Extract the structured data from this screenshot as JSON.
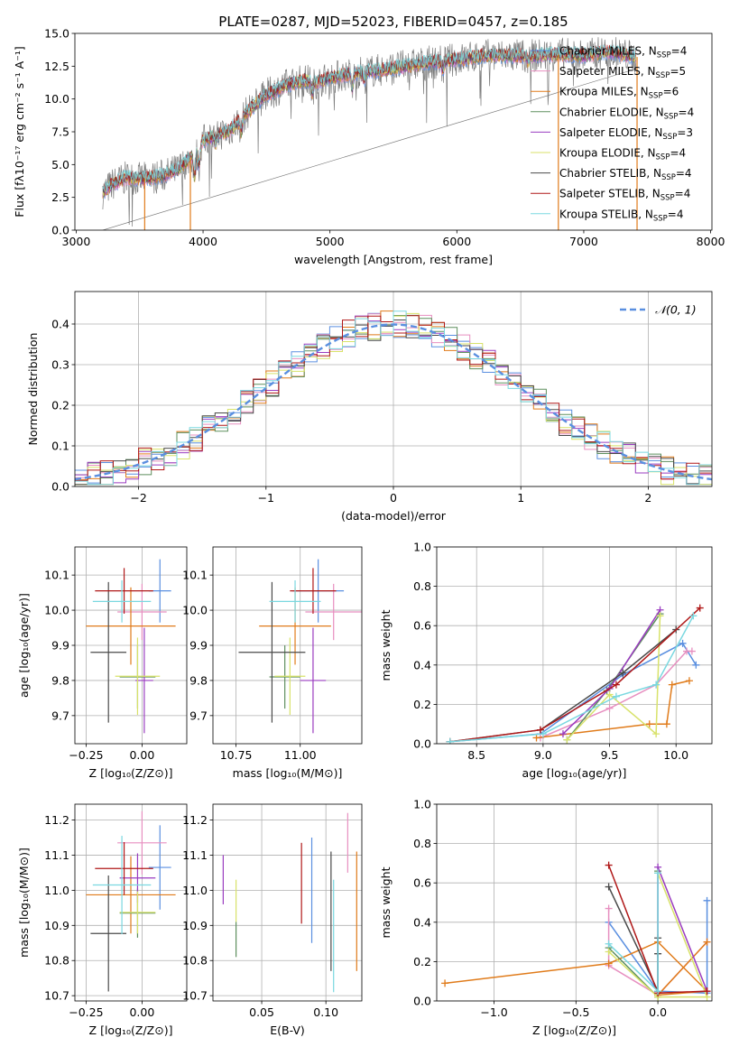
{
  "figure_title": "PLATE=0287, MJD=52023, FIBERID=0457, z=0.185",
  "colors": {
    "Chabrier MILES": "#5a8fe0",
    "Salpeter MILES": "#e78fc0",
    "Kroupa MILES": "#e07b1a",
    "Chabrier ELODIE": "#5e8f5e",
    "Salpeter ELODIE": "#9a3cc0",
    "Kroupa ELODIE": "#d8e26a",
    "Chabrier STELIB": "#4a4a4a",
    "Salpeter STELIB": "#b01818",
    "Kroupa STELIB": "#7ad8e0",
    "spectrum": "#7d7d7d",
    "gaussian": "#5a8fe0"
  },
  "chart_data": [
    {
      "id": "spectrum",
      "type": "line",
      "title": "PLATE=0287, MJD=52023, FIBERID=0457, z=0.185",
      "xlabel": "wavelength [Angstrom, rest frame]",
      "ylabel": "Flux [fλ10⁻¹⁷ erg cm⁻² s⁻¹ A⁻¹]",
      "xlim": [
        2990,
        8010
      ],
      "ylim": [
        0,
        15
      ],
      "xticks": [
        3000,
        4000,
        5000,
        6000,
        7000,
        8000
      ],
      "yticks": [
        0.0,
        2.5,
        5.0,
        7.5,
        10.0,
        12.5,
        15.0
      ],
      "legend_position": "right",
      "legend": [
        {
          "label": "Chabrier MILES, N_SSP=4",
          "color_key": "Chabrier MILES"
        },
        {
          "label": "Salpeter MILES, N_SSP=5",
          "color_key": "Salpeter MILES"
        },
        {
          "label": "Kroupa MILES, N_SSP=6",
          "color_key": "Kroupa MILES"
        },
        {
          "label": "Chabrier ELODIE, N_SSP=4",
          "color_key": "Chabrier ELODIE"
        },
        {
          "label": "Salpeter ELODIE, N_SSP=3",
          "color_key": "Salpeter ELODIE"
        },
        {
          "label": "Kroupa ELODIE, N_SSP=4",
          "color_key": "Kroupa ELODIE"
        },
        {
          "label": "Chabrier STELIB, N_SSP=4",
          "color_key": "Chabrier STELIB"
        },
        {
          "label": "Salpeter STELIB, N_SSP=4",
          "color_key": "Salpeter STELIB"
        },
        {
          "label": "Kroupa STELIB, N_SSP=4",
          "color_key": "Kroupa STELIB"
        }
      ],
      "continuum": {
        "x": [
          3200,
          3300,
          3400,
          3500,
          3600,
          3700,
          3800,
          3900,
          4000,
          4100,
          4200,
          4300,
          4400,
          4500,
          4600,
          4700,
          4800,
          4900,
          5000,
          5200,
          5400,
          5600,
          5800,
          6000,
          6200,
          6400,
          6600,
          6800,
          7000,
          7200,
          7400
        ],
        "y": [
          2.8,
          3.6,
          4.0,
          3.9,
          4.0,
          4.2,
          4.6,
          5.5,
          6.8,
          7.3,
          7.5,
          8.5,
          9.5,
          10.3,
          10.8,
          11.2,
          11.4,
          11.3,
          11.6,
          12.0,
          12.2,
          12.5,
          12.8,
          13.0,
          13.3,
          13.3,
          13.3,
          13.4,
          13.3,
          13.6,
          13.2
        ]
      },
      "model_cutoffs": [
        3540,
        3900,
        6800,
        7420
      ]
    },
    {
      "id": "residuals",
      "type": "step",
      "xlabel": "(data-model)/error",
      "ylabel": "Normed distribution",
      "xlim": [
        -2.5,
        2.5
      ],
      "ylim": [
        0,
        0.48
      ],
      "xticks": [
        -2,
        -1,
        0,
        1,
        2
      ],
      "yticks": [
        0.0,
        0.1,
        0.2,
        0.3,
        0.4
      ],
      "grid": true,
      "legend_position": "top-right",
      "legend": [
        {
          "label": "𝒩(0, 1)",
          "color_key": "gaussian"
        }
      ],
      "bin_width": 0.1,
      "bins_from": -2.5
    },
    {
      "id": "age_vs_Z",
      "type": "errorbar",
      "xlabel": "Z [log₁₀(Z/Z⊙)]",
      "ylabel": "age  [log₁₀(age/yr)]",
      "xlim": [
        -0.3,
        0.2
      ],
      "ylim": [
        9.62,
        10.18
      ],
      "xticks": [
        -0.25,
        0.0
      ],
      "xticklabels": [
        "−0.25",
        "0.00"
      ],
      "yticks": [
        9.7,
        9.8,
        9.9,
        10.0,
        10.1
      ],
      "grid": true,
      "points": [
        {
          "model": "Chabrier MILES",
          "x": 0.08,
          "xerr": 0.05,
          "y": 10.055,
          "yerr": 0.09
        },
        {
          "model": "Salpeter MILES",
          "x": 0.0,
          "xerr": 0.11,
          "y": 9.995,
          "yerr": 0.08
        },
        {
          "model": "Kroupa MILES",
          "x": -0.05,
          "xerr": 0.2,
          "y": 9.955,
          "yerr": 0.11
        },
        {
          "model": "Chabrier ELODIE",
          "x": -0.02,
          "xerr": 0.08,
          "y": 9.81,
          "yerr": 0.09
        },
        {
          "model": "Salpeter ELODIE",
          "x": 0.01,
          "xerr": 0.04,
          "y": 9.8,
          "yerr": 0.15
        },
        {
          "model": "Kroupa ELODIE",
          "x": -0.02,
          "xerr": 0.1,
          "y": 9.812,
          "yerr": 0.11
        },
        {
          "model": "Chabrier STELIB",
          "x": -0.15,
          "xerr": 0.08,
          "y": 9.88,
          "yerr": 0.2
        },
        {
          "model": "Salpeter STELIB",
          "x": -0.08,
          "xerr": 0.13,
          "y": 10.055,
          "yerr": 0.065
        },
        {
          "model": "Kroupa STELIB",
          "x": -0.09,
          "xerr": 0.13,
          "y": 10.025,
          "yerr": 0.06
        }
      ]
    },
    {
      "id": "age_vs_mass",
      "type": "errorbar",
      "xlabel": "mass [log₁₀(M/M⊙)]",
      "ylabel": "",
      "xlim": [
        10.66,
        11.24
      ],
      "ylim": [
        9.62,
        10.18
      ],
      "xticks": [
        10.75,
        11.0
      ],
      "xticklabels": [
        "10.75",
        "11.00"
      ],
      "yticks": [
        9.7,
        9.8,
        9.9,
        10.0,
        10.1
      ],
      "grid": true,
      "points": [
        {
          "model": "Chabrier MILES",
          "x": 11.07,
          "xerr": 0.1,
          "y": 10.055,
          "yerr": 0.09
        },
        {
          "model": "Salpeter MILES",
          "x": 11.13,
          "xerr": 0.11,
          "y": 9.995,
          "yerr": 0.08
        },
        {
          "model": "Kroupa MILES",
          "x": 10.98,
          "xerr": 0.14,
          "y": 9.955,
          "yerr": 0.11
        },
        {
          "model": "Chabrier ELODIE",
          "x": 10.94,
          "xerr": 0.06,
          "y": 9.81,
          "yerr": 0.09
        },
        {
          "model": "Salpeter ELODIE",
          "x": 11.05,
          "xerr": 0.05,
          "y": 9.8,
          "yerr": 0.15
        },
        {
          "model": "Kroupa ELODIE",
          "x": 10.96,
          "xerr": 0.06,
          "y": 9.812,
          "yerr": 0.11
        },
        {
          "model": "Chabrier STELIB",
          "x": 10.89,
          "xerr": 0.13,
          "y": 9.88,
          "yerr": 0.2
        },
        {
          "model": "Salpeter STELIB",
          "x": 11.05,
          "xerr": 0.09,
          "y": 10.055,
          "yerr": 0.065
        },
        {
          "model": "Kroupa STELIB",
          "x": 10.98,
          "xerr": 0.1,
          "y": 10.025,
          "yerr": 0.06
        }
      ]
    },
    {
      "id": "weight_vs_age",
      "type": "line",
      "xlabel": "age  [log₁₀(age/yr)]",
      "ylabel": "mass weight",
      "xlim": [
        8.2,
        10.27
      ],
      "ylim": [
        0,
        1
      ],
      "xticks": [
        8.5,
        9.0,
        9.5,
        10.0
      ],
      "xticklabels": [
        "8.5",
        "9.0",
        "9.5",
        "10.0"
      ],
      "yticks": [
        0.0,
        0.2,
        0.4,
        0.6,
        0.8,
        1.0
      ],
      "grid": true,
      "marker": "+",
      "series": [
        {
          "model": "Chabrier MILES",
          "x": [
            8.3,
            8.98,
            9.6,
            10.05,
            10.15
          ],
          "y": [
            0.01,
            0.05,
            0.35,
            0.51,
            0.4
          ]
        },
        {
          "model": "Salpeter MILES",
          "x": [
            8.98,
            9.5,
            9.85,
            10.08,
            10.12
          ],
          "y": [
            0.03,
            0.18,
            0.3,
            0.47,
            0.47
          ]
        },
        {
          "model": "Kroupa MILES",
          "x": [
            8.95,
            9.8,
            9.93,
            9.97,
            10.1
          ],
          "y": [
            0.03,
            0.1,
            0.1,
            0.3,
            0.32
          ]
        },
        {
          "model": "Chabrier ELODIE",
          "x": [
            9.18,
            9.48,
            9.88
          ],
          "y": [
            0.02,
            0.27,
            0.66
          ]
        },
        {
          "model": "Salpeter ELODIE",
          "x": [
            9.15,
            9.5,
            9.88
          ],
          "y": [
            0.05,
            0.28,
            0.68
          ]
        },
        {
          "model": "Kroupa ELODIE",
          "x": [
            9.18,
            9.5,
            9.85,
            9.88
          ],
          "y": [
            0.02,
            0.25,
            0.05,
            0.65
          ]
        },
        {
          "model": "Chabrier STELIB",
          "x": [
            8.3,
            8.98,
            9.6,
            10.0
          ],
          "y": [
            0.01,
            0.07,
            0.36,
            0.58
          ]
        },
        {
          "model": "Salpeter STELIB",
          "x": [
            8.3,
            8.98,
            9.55,
            10.18
          ],
          "y": [
            0.01,
            0.07,
            0.3,
            0.69
          ]
        },
        {
          "model": "Kroupa STELIB",
          "x": [
            8.3,
            9.0,
            9.55,
            9.85,
            10.13
          ],
          "y": [
            0.01,
            0.05,
            0.24,
            0.3,
            0.65
          ]
        }
      ]
    },
    {
      "id": "mass_vs_Z",
      "type": "errorbar",
      "xlabel": "Z [log₁₀(Z/Z⊙)]",
      "ylabel": "mass [log₁₀(M/M⊙)]",
      "xlim": [
        -0.3,
        0.2
      ],
      "ylim": [
        10.685,
        11.245
      ],
      "xticks": [
        -0.25,
        0.0
      ],
      "xticklabels": [
        "−0.25",
        "0.00"
      ],
      "yticks": [
        10.7,
        10.8,
        10.9,
        11.0,
        11.1,
        11.2
      ],
      "grid": true,
      "points": [
        {
          "model": "Chabrier MILES",
          "x": 0.08,
          "xerr": 0.05,
          "y": 11.065,
          "yerr": 0.12
        },
        {
          "model": "Salpeter MILES",
          "x": 0.0,
          "xerr": 0.11,
          "y": 11.135,
          "yerr": 0.09
        },
        {
          "model": "Kroupa MILES",
          "x": -0.05,
          "xerr": 0.2,
          "y": 10.987,
          "yerr": 0.11
        },
        {
          "model": "Chabrier ELODIE",
          "x": -0.02,
          "xerr": 0.08,
          "y": 10.935,
          "yerr": 0.07
        },
        {
          "model": "Salpeter ELODIE",
          "x": -0.02,
          "xerr": 0.08,
          "y": 11.035,
          "yerr": 0.07
        },
        {
          "model": "Kroupa ELODIE",
          "x": -0.02,
          "xerr": 0.08,
          "y": 10.937,
          "yerr": 0.06
        },
        {
          "model": "Chabrier STELIB",
          "x": -0.15,
          "xerr": 0.08,
          "y": 10.877,
          "yerr": 0.165
        },
        {
          "model": "Salpeter STELIB",
          "x": -0.08,
          "xerr": 0.13,
          "y": 11.062,
          "yerr": 0.075
        },
        {
          "model": "Kroupa STELIB",
          "x": -0.09,
          "xerr": 0.13,
          "y": 11.015,
          "yerr": 0.14
        }
      ]
    },
    {
      "id": "mass_vs_ebv",
      "type": "errorbar",
      "xlabel": "E(B-V)",
      "ylabel": "",
      "xlim": [
        0.012,
        0.128
      ],
      "ylim": [
        10.685,
        11.245
      ],
      "xticks": [
        0.05,
        0.1
      ],
      "xticklabels": [
        "0.05",
        "0.10"
      ],
      "yticks": [
        10.7,
        10.8,
        10.9,
        11.0,
        11.1,
        11.2
      ],
      "grid": true,
      "points": [
        {
          "model": "Chabrier MILES",
          "x": 0.089,
          "xerr": 0,
          "y": 11.0,
          "yerr": 0.15
        },
        {
          "model": "Salpeter MILES",
          "x": 0.117,
          "xerr": 0,
          "y": 11.135,
          "yerr": 0.085
        },
        {
          "model": "Kroupa MILES",
          "x": 0.124,
          "xerr": 0,
          "y": 10.94,
          "yerr": 0.17
        },
        {
          "model": "Chabrier ELODIE",
          "x": 0.03,
          "xerr": 0,
          "y": 10.86,
          "yerr": 0.05
        },
        {
          "model": "Salpeter ELODIE",
          "x": 0.02,
          "xerr": 0,
          "y": 11.03,
          "yerr": 0.07
        },
        {
          "model": "Kroupa ELODIE",
          "x": 0.03,
          "xerr": 0,
          "y": 10.97,
          "yerr": 0.06
        },
        {
          "model": "Chabrier STELIB",
          "x": 0.104,
          "xerr": 0,
          "y": 10.94,
          "yerr": 0.17
        },
        {
          "model": "Salpeter STELIB",
          "x": 0.081,
          "xerr": 0,
          "y": 11.02,
          "yerr": 0.115
        },
        {
          "model": "Kroupa STELIB",
          "x": 0.106,
          "xerr": 0,
          "y": 10.87,
          "yerr": 0.16
        }
      ]
    },
    {
      "id": "weight_vs_Z",
      "type": "line",
      "xlabel": "Z [log₁₀(Z/Z⊙)]",
      "ylabel": "mass weight",
      "xlim": [
        -1.35,
        0.33
      ],
      "ylim": [
        0,
        1
      ],
      "xticks": [
        -1.0,
        -0.5,
        0.0
      ],
      "xticklabels": [
        "−1.0",
        "−0.5",
        "0.0"
      ],
      "yticks": [
        0.0,
        0.2,
        0.4,
        0.6,
        0.8,
        1.0
      ],
      "grid": true,
      "marker": "+",
      "series": [
        {
          "model": "Chabrier MILES",
          "x": [
            -0.3,
            0.0,
            0.3,
            0.3
          ],
          "y": [
            0.4,
            0.05,
            0.04,
            0.51
          ]
        },
        {
          "model": "Salpeter MILES",
          "x": [
            -0.3,
            -0.3,
            0.0,
            0.3
          ],
          "y": [
            0.47,
            0.18,
            0.03,
            0.3
          ]
        },
        {
          "model": "Kroupa MILES",
          "x": [
            -1.3,
            -0.3,
            0.0,
            0.3,
            0.0,
            0.3
          ],
          "y": [
            0.09,
            0.19,
            0.3,
            0.05,
            0.03,
            0.3
          ]
        },
        {
          "model": "Chabrier ELODIE",
          "x": [
            -0.3,
            0.0,
            0.0
          ],
          "y": [
            0.27,
            0.02,
            0.66
          ]
        },
        {
          "model": "Salpeter ELODIE",
          "x": [
            0.0,
            0.0,
            0.3
          ],
          "y": [
            0.05,
            0.68,
            0.05
          ]
        },
        {
          "model": "Kroupa ELODIE",
          "x": [
            -0.3,
            0.0,
            0.3,
            0.0
          ],
          "y": [
            0.25,
            0.02,
            0.02,
            0.65
          ]
        },
        {
          "model": "Chabrier STELIB",
          "x": [
            -0.3,
            0.0,
            0.0,
            0.0
          ],
          "y": [
            0.58,
            0.05,
            0.32,
            0.24
          ]
        },
        {
          "model": "Salpeter STELIB",
          "x": [
            -0.3,
            0.0,
            0.3
          ],
          "y": [
            0.69,
            0.04,
            0.05
          ]
        },
        {
          "model": "Kroupa STELIB",
          "x": [
            -0.3,
            0.0,
            0.0
          ],
          "y": [
            0.29,
            0.05,
            0.65
          ]
        }
      ]
    }
  ]
}
